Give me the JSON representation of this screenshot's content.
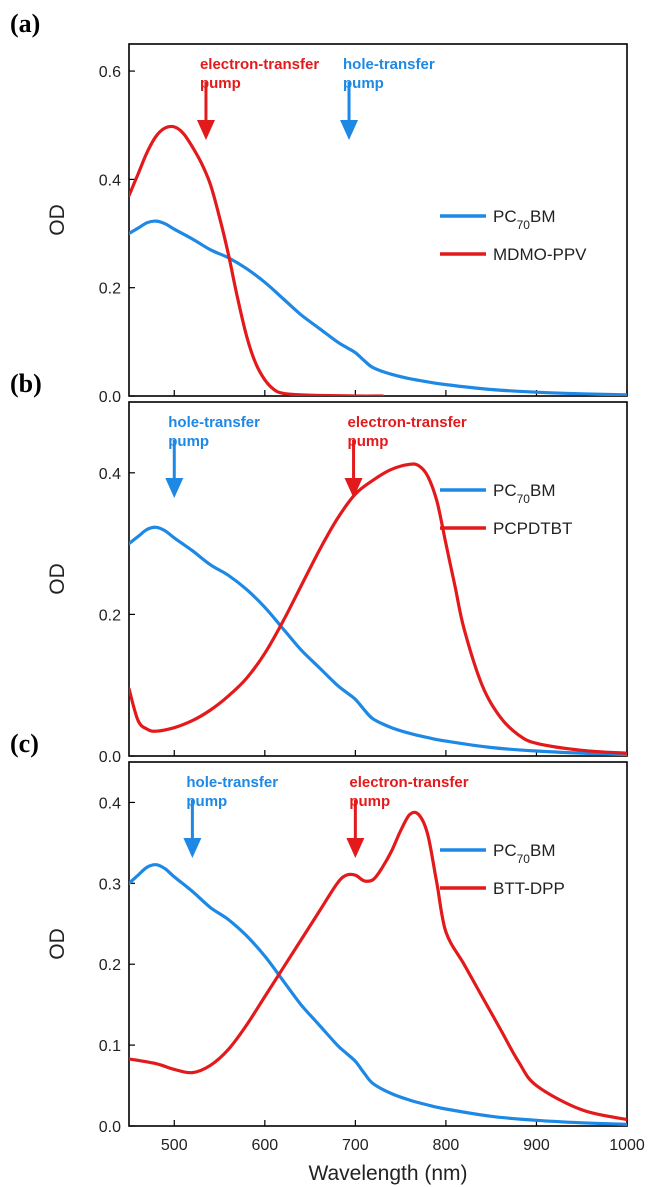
{
  "chart_data": [
    {
      "type": "line",
      "panel_label": "(a)",
      "ylabel": "OD",
      "xlim": [
        450,
        1000
      ],
      "ylim": [
        0,
        0.65
      ],
      "yticks": [
        0.0,
        0.2,
        0.4,
        0.6
      ],
      "ytick_labels": [
        "0.0",
        "0.2",
        "0.4",
        "0.6"
      ],
      "legend_position": "right",
      "series": [
        {
          "name_parts": [
            "PC",
            "70",
            "BM"
          ],
          "color": "#1e88e5",
          "x": [
            450,
            460,
            470,
            480,
            490,
            500,
            520,
            540,
            560,
            580,
            600,
            620,
            640,
            660,
            680,
            690,
            700,
            710,
            720,
            740,
            760,
            780,
            800,
            850,
            900,
            950,
            1000
          ],
          "y": [
            0.3,
            0.31,
            0.32,
            0.323,
            0.318,
            0.308,
            0.29,
            0.27,
            0.255,
            0.235,
            0.21,
            0.18,
            0.15,
            0.125,
            0.1,
            0.09,
            0.08,
            0.065,
            0.052,
            0.04,
            0.032,
            0.026,
            0.021,
            0.012,
            0.007,
            0.004,
            0.002
          ]
        },
        {
          "name": "MDMO-PPV",
          "color": "#e31a1c",
          "x": [
            450,
            460,
            470,
            480,
            490,
            500,
            510,
            520,
            530,
            540,
            550,
            560,
            570,
            580,
            590,
            600,
            610,
            620,
            640,
            660,
            700,
            730
          ],
          "y": [
            0.37,
            0.41,
            0.45,
            0.48,
            0.495,
            0.497,
            0.485,
            0.46,
            0.43,
            0.39,
            0.33,
            0.26,
            0.18,
            0.11,
            0.06,
            0.03,
            0.012,
            0.005,
            0.002,
            0.001,
            0.0,
            0.0
          ]
        }
      ],
      "annotations": [
        {
          "lines": [
            "electron-transfer",
            "pump"
          ],
          "color": "#e31a1c",
          "arrow_x": 535
        },
        {
          "lines": [
            "hole-transfer",
            "pump"
          ],
          "color": "#1e88e5",
          "arrow_x": 693
        }
      ]
    },
    {
      "type": "line",
      "panel_label": "(b)",
      "ylabel": "OD",
      "xlim": [
        450,
        1000
      ],
      "ylim": [
        0,
        0.5
      ],
      "yticks": [
        0.0,
        0.2,
        0.4
      ],
      "ytick_labels": [
        "0.0",
        "0.2",
        "0.4"
      ],
      "legend_position": "right",
      "series": [
        {
          "name_parts": [
            "PC",
            "70",
            "BM"
          ],
          "color": "#1e88e5",
          "x": [
            450,
            460,
            470,
            480,
            490,
            500,
            520,
            540,
            560,
            580,
            600,
            620,
            640,
            660,
            680,
            690,
            700,
            710,
            720,
            740,
            760,
            780,
            800,
            850,
            900,
            950,
            1000
          ],
          "y": [
            0.3,
            0.31,
            0.32,
            0.323,
            0.318,
            0.308,
            0.29,
            0.27,
            0.255,
            0.235,
            0.21,
            0.18,
            0.15,
            0.125,
            0.1,
            0.09,
            0.08,
            0.065,
            0.052,
            0.04,
            0.032,
            0.026,
            0.021,
            0.012,
            0.007,
            0.004,
            0.002
          ]
        },
        {
          "name": "PCPDTBT",
          "color": "#e31a1c",
          "x": [
            450,
            460,
            470,
            480,
            500,
            520,
            540,
            560,
            580,
            600,
            620,
            640,
            660,
            680,
            700,
            720,
            740,
            760,
            770,
            780,
            790,
            800,
            810,
            820,
            840,
            860,
            880,
            900,
            950,
            1000
          ],
          "y": [
            0.095,
            0.05,
            0.038,
            0.035,
            0.04,
            0.05,
            0.065,
            0.085,
            0.11,
            0.145,
            0.19,
            0.24,
            0.29,
            0.335,
            0.37,
            0.39,
            0.405,
            0.412,
            0.41,
            0.395,
            0.36,
            0.3,
            0.24,
            0.18,
            0.1,
            0.055,
            0.03,
            0.018,
            0.008,
            0.004
          ]
        }
      ],
      "annotations": [
        {
          "lines": [
            "hole-transfer",
            "pump"
          ],
          "color": "#1e88e5",
          "arrow_x": 500
        },
        {
          "lines": [
            "electron-transfer",
            "pump"
          ],
          "color": "#e31a1c",
          "arrow_x": 698
        }
      ]
    },
    {
      "type": "line",
      "panel_label": "(c)",
      "ylabel": "OD",
      "xlabel": "Wavelength (nm)",
      "xlim": [
        450,
        1000
      ],
      "ylim": [
        0,
        0.45
      ],
      "yticks": [
        0.0,
        0.1,
        0.2,
        0.3,
        0.4
      ],
      "ytick_labels": [
        "0.0",
        "0.1",
        "0.2",
        "0.3",
        "0.4"
      ],
      "xticks": [
        500,
        600,
        700,
        800,
        900,
        1000
      ],
      "xtick_labels": [
        "500",
        "600",
        "700",
        "800",
        "900",
        "1000"
      ],
      "legend_position": "right",
      "series": [
        {
          "name_parts": [
            "PC",
            "70",
            "BM"
          ],
          "color": "#1e88e5",
          "x": [
            450,
            460,
            470,
            480,
            490,
            500,
            520,
            540,
            560,
            580,
            600,
            620,
            640,
            660,
            680,
            690,
            700,
            710,
            720,
            740,
            760,
            780,
            800,
            850,
            900,
            950,
            1000
          ],
          "y": [
            0.3,
            0.31,
            0.32,
            0.323,
            0.318,
            0.308,
            0.29,
            0.27,
            0.255,
            0.235,
            0.21,
            0.18,
            0.15,
            0.125,
            0.1,
            0.09,
            0.08,
            0.065,
            0.052,
            0.04,
            0.032,
            0.026,
            0.021,
            0.012,
            0.007,
            0.004,
            0.002
          ]
        },
        {
          "name": "BTT-DPP",
          "color": "#e31a1c",
          "x": [
            450,
            480,
            500,
            520,
            540,
            560,
            580,
            600,
            620,
            640,
            660,
            680,
            690,
            700,
            710,
            720,
            730,
            740,
            750,
            760,
            770,
            780,
            790,
            800,
            820,
            840,
            860,
            880,
            900,
            950,
            1000
          ],
          "y": [
            0.083,
            0.077,
            0.07,
            0.066,
            0.075,
            0.095,
            0.125,
            0.16,
            0.195,
            0.23,
            0.265,
            0.3,
            0.31,
            0.31,
            0.303,
            0.305,
            0.32,
            0.34,
            0.365,
            0.385,
            0.385,
            0.36,
            0.3,
            0.24,
            0.2,
            0.16,
            0.12,
            0.08,
            0.05,
            0.02,
            0.008
          ]
        }
      ],
      "annotations": [
        {
          "lines": [
            "hole-transfer",
            "pump"
          ],
          "color": "#1e88e5",
          "arrow_x": 520
        },
        {
          "lines": [
            "electron-transfer",
            "pump"
          ],
          "color": "#e31a1c",
          "arrow_x": 700
        }
      ]
    }
  ]
}
